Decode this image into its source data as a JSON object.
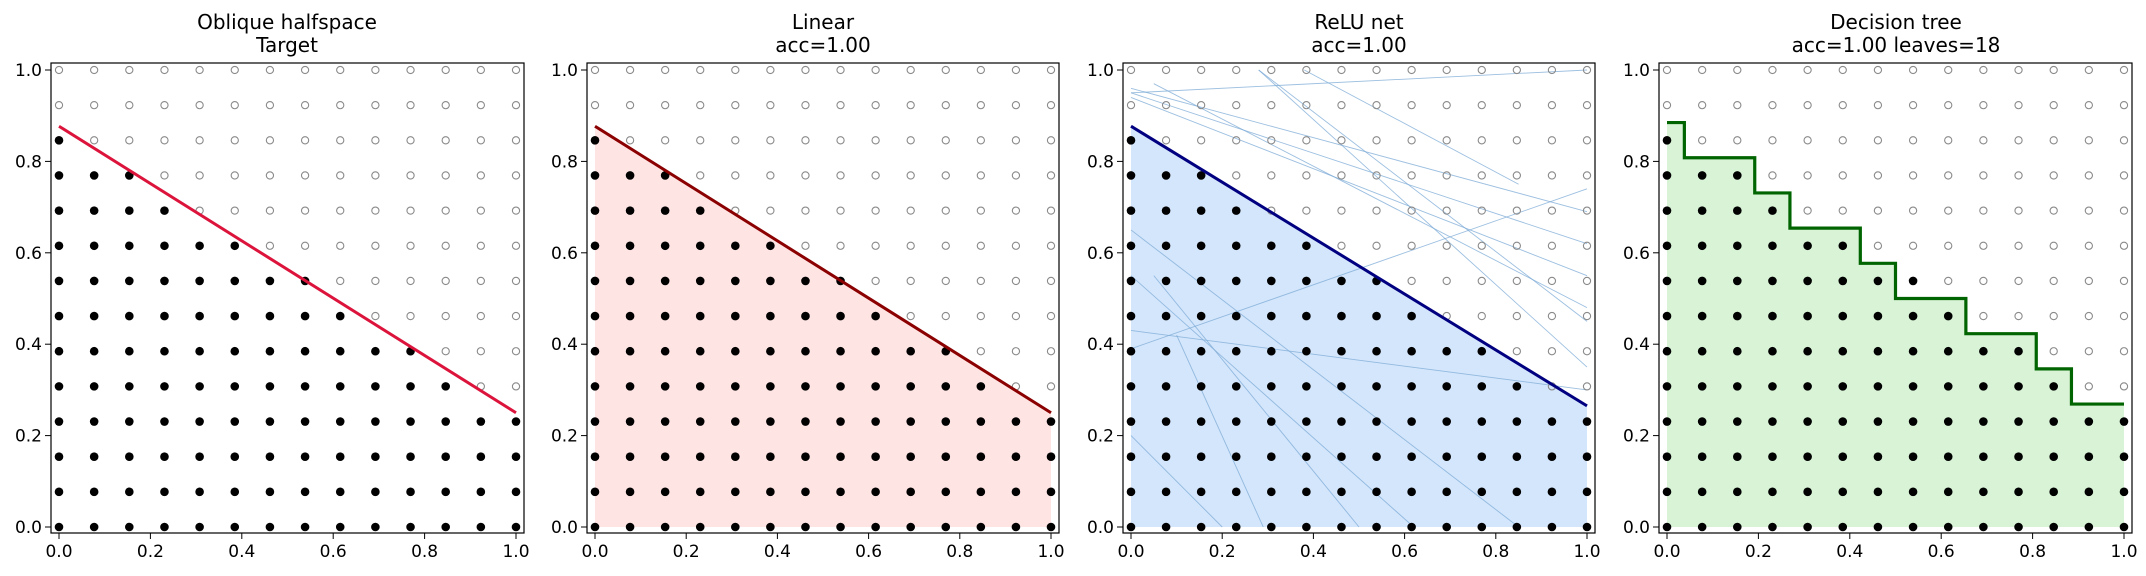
{
  "figure": {
    "grid_points_per_axis": 14,
    "x_ticks": [
      "0.0",
      "0.2",
      "0.4",
      "0.6",
      "0.8",
      "1.0"
    ],
    "y_ticks": [
      "0.0",
      "0.2",
      "0.4",
      "0.6",
      "0.8",
      "1.0"
    ],
    "boundary_line": {
      "intercept": 0.877,
      "slope": -0.627
    }
  },
  "chart_data": [
    {
      "type": "scatter",
      "title": "Oblique halfspace",
      "subtitle": "Target",
      "xlim": [
        0,
        1
      ],
      "ylim": [
        0,
        1
      ],
      "grid": false,
      "fill_color": "",
      "boundary": {
        "kind": "line",
        "color": "#dc143c",
        "x": [
          0,
          1
        ],
        "y": [
          0.877,
          0.25
        ]
      }
    },
    {
      "type": "scatter",
      "title": "Linear",
      "subtitle": "acc=1.00",
      "xlim": [
        0,
        1
      ],
      "ylim": [
        0,
        1
      ],
      "grid": false,
      "fill_color": "#ffe4e4",
      "boundary": {
        "kind": "line",
        "color": "#8b0000",
        "x": [
          0,
          1
        ],
        "y": [
          0.877,
          0.25
        ]
      }
    },
    {
      "type": "scatter",
      "title": "ReLU net",
      "subtitle": "acc=1.00",
      "xlim": [
        0,
        1
      ],
      "ylim": [
        0,
        1
      ],
      "grid": false,
      "fill_color": "#d4e6fb",
      "boundary": {
        "kind": "line",
        "color": "#000080",
        "x": [
          0,
          1
        ],
        "y": [
          0.877,
          0.265
        ]
      },
      "hidden_unit_lines": {
        "color": "#7ba9d6",
        "lines": [
          [
            [
              0,
              0.95
            ],
            [
              1,
              1.0
            ]
          ],
          [
            [
              0,
              0.96
            ],
            [
              1,
              0.69
            ]
          ],
          [
            [
              0,
              0.95
            ],
            [
              1,
              0.62
            ]
          ],
          [
            [
              0,
              0.94
            ],
            [
              1,
              0.55
            ]
          ],
          [
            [
              0.05,
              0.97
            ],
            [
              1,
              0.48
            ]
          ],
          [
            [
              0.28,
              1.0
            ],
            [
              1,
              0.45
            ]
          ],
          [
            [
              0.38,
              1.0
            ],
            [
              0.85,
              0.75
            ]
          ],
          [
            [
              0.28,
              1.0
            ],
            [
              1,
              0.35
            ]
          ],
          [
            [
              0,
              0.39
            ],
            [
              1,
              0.74
            ]
          ],
          [
            [
              0,
              0.43
            ],
            [
              1,
              0.3
            ]
          ],
          [
            [
              0,
              0.55
            ],
            [
              0.62,
              0.0
            ]
          ],
          [
            [
              0,
              0.65
            ],
            [
              0.85,
              0.0
            ]
          ],
          [
            [
              0.05,
              0.55
            ],
            [
              0.5,
              0.0
            ]
          ],
          [
            [
              0.1,
              0.42
            ],
            [
              0.29,
              0.0
            ]
          ],
          [
            [
              0,
              0.2
            ],
            [
              0.2,
              0.0
            ]
          ]
        ]
      }
    },
    {
      "type": "scatter",
      "title": "Decision tree",
      "subtitle": "acc=1.00  leaves=18",
      "xlim": [
        0,
        1
      ],
      "ylim": [
        0,
        1
      ],
      "grid": false,
      "fill_color": "#d8f3d6",
      "boundary": {
        "kind": "step",
        "color": "#006400",
        "x": [
          0.0,
          0.038,
          0.038,
          0.192,
          0.192,
          0.269,
          0.269,
          0.423,
          0.423,
          0.5,
          0.5,
          0.654,
          0.654,
          0.808,
          0.808,
          0.885,
          0.885,
          1.0
        ],
        "y": [
          0.885,
          0.885,
          0.808,
          0.808,
          0.731,
          0.731,
          0.654,
          0.654,
          0.577,
          0.577,
          0.5,
          0.5,
          0.423,
          0.423,
          0.346,
          0.346,
          0.269,
          0.269
        ]
      }
    }
  ]
}
